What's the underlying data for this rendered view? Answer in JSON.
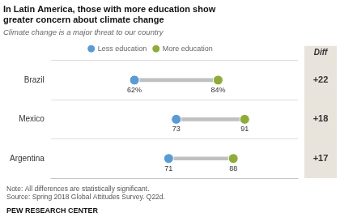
{
  "chart_data": {
    "type": "dumbbell",
    "title": "In Latin America, those with more education show\ngreater concern about climate change",
    "subtitle": "Climate change is a major threat to our country",
    "categories": [
      "Brazil",
      "Mexico",
      "Argentina"
    ],
    "series": [
      {
        "name": "Less education",
        "color": "#5b9bd5",
        "values": [
          62,
          73,
          71
        ],
        "value_labels": [
          "62%",
          "73",
          "71"
        ]
      },
      {
        "name": "More education",
        "color": "#8fac3a",
        "values": [
          84,
          91,
          88
        ],
        "value_labels": [
          "84%",
          "91",
          "88"
        ]
      }
    ],
    "diff": {
      "label": "Diff",
      "values": [
        22,
        18,
        17
      ],
      "value_labels": [
        "+22",
        "+18",
        "+17"
      ]
    },
    "note": "Note: All differences are statistically significant.\nSource: Spring 2018 Global Attitudes Survey. Q22d.",
    "source": "PEW RESEARCH CENTER",
    "orientation": "horizontal",
    "xlim": [
      40,
      105
    ],
    "grid": true,
    "legend": "top",
    "data_labels": true,
    "tick_labels": "y"
  }
}
